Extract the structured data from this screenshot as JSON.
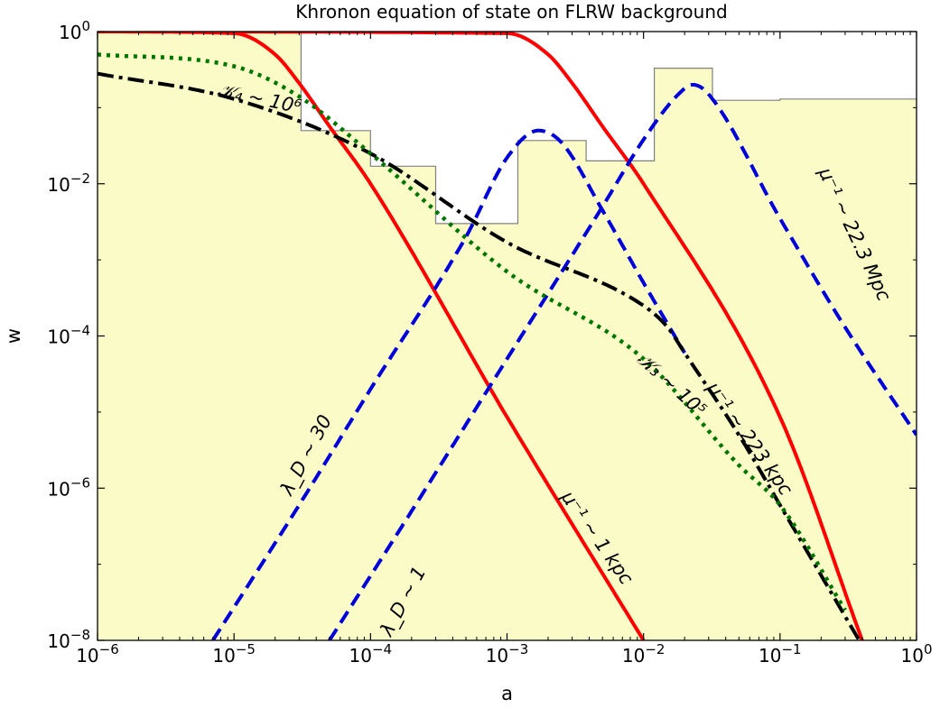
{
  "chart_data": {
    "type": "line",
    "title": "Khronon equation of state on FLRW background",
    "xlabel": "a",
    "ylabel": "w",
    "xscale": "log",
    "yscale": "log",
    "xlim": [
      1e-06,
      1
    ],
    "ylim": [
      1e-08,
      1
    ],
    "grid": false,
    "x_ticks": [
      {
        "value": 1e-06,
        "base": "10",
        "exp": "−6"
      },
      {
        "value": 1e-05,
        "base": "10",
        "exp": "−5"
      },
      {
        "value": 0.0001,
        "base": "10",
        "exp": "−4"
      },
      {
        "value": 0.001,
        "base": "10",
        "exp": "−3"
      },
      {
        "value": 0.01,
        "base": "10",
        "exp": "−2"
      },
      {
        "value": 0.1,
        "base": "10",
        "exp": "−1"
      },
      {
        "value": 1,
        "base": "10",
        "exp": "0"
      }
    ],
    "y_ticks": [
      {
        "value": 1e-08,
        "base": "10",
        "exp": "−8"
      },
      {
        "value": 1e-06,
        "base": "10",
        "exp": "−6"
      },
      {
        "value": 0.0001,
        "base": "10",
        "exp": "−4"
      },
      {
        "value": 0.01,
        "base": "10",
        "exp": "−2"
      },
      {
        "value": 1,
        "base": "10",
        "exp": "0"
      }
    ],
    "excluded_region": {
      "fill": "#fbfbc8",
      "edge": "#808080",
      "boundary": [
        [
          1e-06,
          1
        ],
        [
          3.1e-05,
          1
        ],
        [
          3.1e-05,
          0.05
        ],
        [
          0.0001,
          0.05
        ],
        [
          0.0001,
          0.017
        ],
        [
          0.0003,
          0.017
        ],
        [
          0.0003,
          0.003
        ],
        [
          0.0012,
          0.003
        ],
        [
          0.0012,
          0.037
        ],
        [
          0.0038,
          0.037
        ],
        [
          0.0038,
          0.02
        ],
        [
          0.012,
          0.02
        ],
        [
          0.012,
          0.33
        ],
        [
          0.032,
          0.33
        ],
        [
          0.032,
          0.125
        ],
        [
          0.1,
          0.125
        ],
        [
          0.1,
          0.13
        ],
        [
          1,
          0.13
        ]
      ]
    },
    "series": [
      {
        "color": "#ff0000",
        "dash": "solid",
        "width": 4,
        "points": [
          [
            1e-06,
            1.0
          ],
          [
            1e-05,
            0.95
          ],
          [
            2e-05,
            0.5
          ],
          [
            3e-05,
            0.21
          ],
          [
            5e-05,
            0.057
          ],
          [
            0.0001,
            0.01
          ],
          [
            0.001,
            8.6e-06
          ],
          [
            0.01,
            1e-08
          ]
        ]
      },
      {
        "color": "#ff0000",
        "dash": "solid",
        "width": 4,
        "points": [
          [
            1e-06,
            1.0
          ],
          [
            0.001,
            0.95
          ],
          [
            0.002,
            0.5
          ],
          [
            0.003,
            0.21
          ],
          [
            0.005,
            0.057
          ],
          [
            0.01,
            0.01
          ],
          [
            0.1,
            8.6e-06
          ],
          [
            0.4,
            1e-08
          ]
        ]
      },
      {
        "color": "#0000dd",
        "dash": "dashed",
        "width": 4,
        "points": [
          [
            7e-06,
            1e-08
          ],
          [
            3e-05,
            6e-07
          ],
          [
            0.0001,
            2e-05
          ],
          [
            0.0005,
            0.002
          ],
          [
            0.001,
            0.022
          ],
          [
            0.0017,
            0.05
          ],
          [
            0.0025,
            0.035
          ],
          [
            0.005,
            0.0045
          ],
          [
            0.01,
            0.0005
          ],
          [
            0.02,
            6e-05
          ]
        ]
      },
      {
        "color": "#0000dd",
        "dash": "dashed",
        "width": 4,
        "points": [
          [
            5e-05,
            1e-08
          ],
          [
            0.0002,
            5e-07
          ],
          [
            0.001,
            5e-05
          ],
          [
            0.005,
            0.005
          ],
          [
            0.01,
            0.038
          ],
          [
            0.018,
            0.15
          ],
          [
            0.023,
            0.2
          ],
          [
            0.03,
            0.15
          ],
          [
            0.1,
            0.0035
          ],
          [
            0.3,
            0.00013
          ],
          [
            1,
            5e-06
          ]
        ]
      },
      {
        "color": "#000000",
        "dash": "dashdot",
        "width": 4,
        "points": [
          [
            1e-06,
            0.28
          ],
          [
            1e-05,
            0.13
          ],
          [
            0.0001,
            0.025
          ],
          [
            0.001,
            0.0017
          ],
          [
            0.01,
            0.00025
          ],
          [
            0.015,
            0.00013
          ],
          [
            0.02,
            6e-05
          ],
          [
            0.05,
            5e-06
          ],
          [
            0.1,
            6e-07
          ],
          [
            0.38,
            1e-08
          ]
        ]
      },
      {
        "color": "#007700",
        "dash": "dotted",
        "width": 4.5,
        "points": [
          [
            1e-06,
            0.5
          ],
          [
            1e-05,
            0.35
          ],
          [
            3e-05,
            0.14
          ],
          [
            0.0001,
            0.025
          ],
          [
            0.001,
            0.0007
          ],
          [
            0.01,
            5e-05
          ],
          [
            0.05,
            2e-06
          ],
          [
            0.1,
            6e-07
          ],
          [
            0.3,
            2.5e-08
          ]
        ]
      }
    ],
    "annotations": [
      {
        "text": "𝒦₄ ∼ 10⁶",
        "x": 1.5e-05,
        "y": 0.11,
        "angle": 12
      },
      {
        "text": "𝒦₃ ∼ 10⁵",
        "x": 0.015,
        "y": 2e-05,
        "angle": 42
      },
      {
        "text": "λ_D ∼ 30",
        "x": 3.7e-05,
        "y": 2.5e-06,
        "angle": -62
      },
      {
        "text": "λ_D ∼ 1",
        "x": 0.00019,
        "y": 3e-08,
        "angle": -62
      },
      {
        "text": "μ⁻¹ ∼ 1 kpc",
        "x": 0.0042,
        "y": 2e-07,
        "angle": 55
      },
      {
        "text": "μ⁻¹ ∼ 223 kpc",
        "x": 0.055,
        "y": 4e-06,
        "angle": 55
      },
      {
        "text": "μ⁻¹ ∼ 22.3 Mpc",
        "x": 0.32,
        "y": 0.002,
        "angle": 65
      }
    ]
  }
}
